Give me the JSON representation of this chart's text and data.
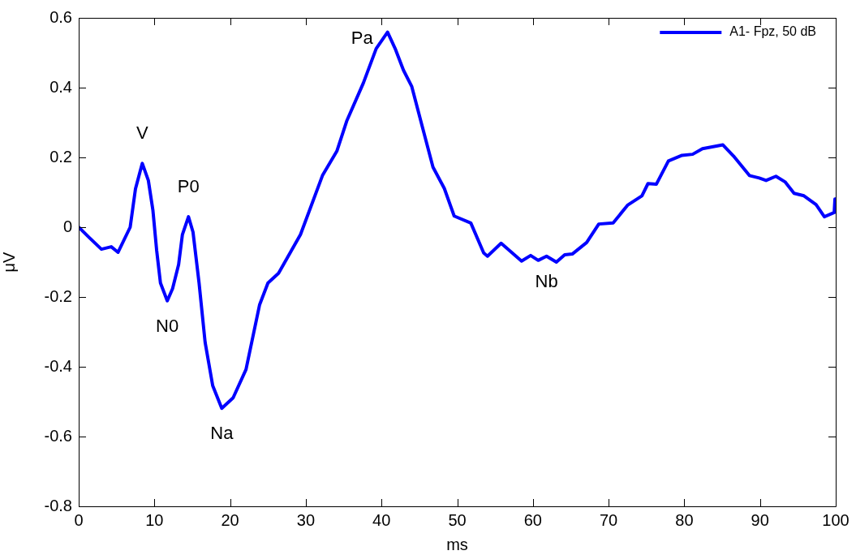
{
  "chart_data": {
    "type": "line",
    "xlabel": "ms",
    "ylabel": "μV",
    "xlim": [
      0,
      100
    ],
    "ylim": [
      -0.8,
      0.6
    ],
    "xticks": [
      0,
      10,
      20,
      30,
      40,
      50,
      60,
      70,
      80,
      90,
      100
    ],
    "yticks": [
      -0.8,
      -0.6,
      -0.4,
      -0.2,
      0,
      0.2,
      0.4,
      0.6
    ],
    "grid": false,
    "legend": "top right",
    "marker": "none",
    "line_style": "solid",
    "series": [
      {
        "name": "A1- Fpz, 50 dB",
        "color": "#0000ff",
        "x": [
          0,
          1.4,
          3.0,
          4.3,
          5.2,
          6.8,
          7.5,
          8.4,
          9.2,
          9.8,
          10.3,
          10.8,
          11.7,
          12.4,
          13.2,
          13.7,
          14.5,
          15.1,
          15.9,
          16.7,
          17.7,
          18.9,
          20.4,
          22.1,
          23.9,
          25.0,
          26.4,
          29.3,
          32.2,
          34.1,
          35.4,
          37.6,
          39.3,
          40.8,
          41.8,
          42.9,
          44.0,
          45.4,
          46.8,
          48.3,
          49.6,
          51.8,
          53.5,
          54.0,
          55.8,
          58.5,
          59.7,
          60.7,
          61.8,
          63.1,
          64.2,
          65.2,
          67.1,
          68.7,
          70.6,
          72.5,
          74.4,
          75.2,
          76.3,
          77.9,
          79.7,
          81.1,
          82.4,
          85.1,
          86.5,
          88.6,
          89.9,
          90.8,
          92.1,
          93.3,
          94.5,
          95.8,
          97.4,
          98.5,
          99.8,
          99.9
        ],
        "values": [
          0,
          -0.03,
          -0.063,
          -0.056,
          -0.072,
          0,
          0.11,
          0.183,
          0.134,
          0.049,
          -0.067,
          -0.16,
          -0.211,
          -0.176,
          -0.107,
          -0.021,
          0.03,
          -0.014,
          -0.16,
          -0.33,
          -0.454,
          -0.519,
          -0.489,
          -0.408,
          -0.222,
          -0.16,
          -0.132,
          -0.021,
          0.148,
          0.218,
          0.304,
          0.413,
          0.512,
          0.559,
          0.512,
          0.45,
          0.403,
          0.287,
          0.172,
          0.111,
          0.032,
          0.012,
          -0.074,
          -0.083,
          -0.046,
          -0.097,
          -0.081,
          -0.095,
          -0.083,
          -0.1,
          -0.079,
          -0.077,
          -0.044,
          0.009,
          0.012,
          0.063,
          0.09,
          0.125,
          0.123,
          0.19,
          0.206,
          0.209,
          0.225,
          0.236,
          0.204,
          0.148,
          0.141,
          0.134,
          0.146,
          0.13,
          0.097,
          0.09,
          0.065,
          0.03,
          0.042,
          0.081
        ]
      }
    ],
    "annotations": [
      {
        "text": "V",
        "x": 8.4,
        "y": 0.183
      },
      {
        "text": "P0",
        "x": 14.5,
        "y": 0.03
      },
      {
        "text": "N0",
        "x": 11.7,
        "y": -0.211
      },
      {
        "text": "Na",
        "x": 18.9,
        "y": -0.519
      },
      {
        "text": "Pa",
        "x": 40.8,
        "y": 0.559
      },
      {
        "text": "Nb",
        "x": 61.8,
        "y": -0.083
      }
    ]
  }
}
